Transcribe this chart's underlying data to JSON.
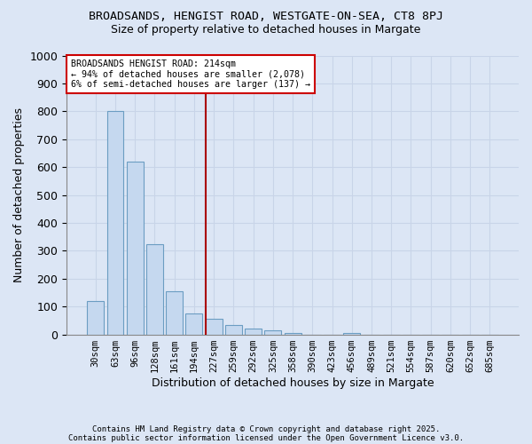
{
  "title": "BROADSANDS, HENGIST ROAD, WESTGATE-ON-SEA, CT8 8PJ",
  "subtitle": "Size of property relative to detached houses in Margate",
  "xlabel": "Distribution of detached houses by size in Margate",
  "ylabel": "Number of detached properties",
  "categories": [
    "30sqm",
    "63sqm",
    "96sqm",
    "128sqm",
    "161sqm",
    "194sqm",
    "227sqm",
    "259sqm",
    "292sqm",
    "325sqm",
    "358sqm",
    "390sqm",
    "423sqm",
    "456sqm",
    "489sqm",
    "521sqm",
    "554sqm",
    "587sqm",
    "620sqm",
    "652sqm",
    "685sqm"
  ],
  "values": [
    120,
    800,
    620,
    325,
    155,
    75,
    55,
    35,
    20,
    15,
    5,
    0,
    0,
    5,
    0,
    0,
    0,
    0,
    0,
    0,
    0
  ],
  "bar_color": "#c5d8ef",
  "bar_edgecolor": "#6b9dc2",
  "background_color": "#dce6f5",
  "grid_color": "#c8d4e8",
  "vline_color": "#aa0000",
  "annotation_title": "BROADSANDS HENGIST ROAD: 214sqm",
  "annotation_line1": "← 94% of detached houses are smaller (2,078)",
  "annotation_line2": "6% of semi-detached houses are larger (137) →",
  "annotation_box_facecolor": "#ffffff",
  "annotation_box_edgecolor": "#cc0000",
  "ylim": [
    0,
    1000
  ],
  "yticks": [
    0,
    100,
    200,
    300,
    400,
    500,
    600,
    700,
    800,
    900,
    1000
  ],
  "footnote1": "Contains HM Land Registry data © Crown copyright and database right 2025.",
  "footnote2": "Contains public sector information licensed under the Open Government Licence v3.0."
}
